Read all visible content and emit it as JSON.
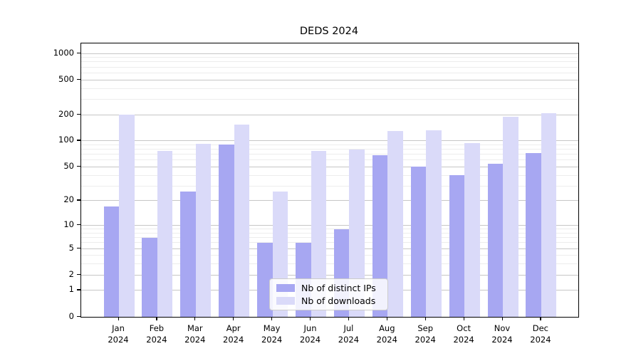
{
  "chart_data": {
    "type": "bar",
    "title": "DEDS 2024",
    "categories": [
      "Jan",
      "Feb",
      "Mar",
      "Apr",
      "May",
      "Jun",
      "Jul",
      "Aug",
      "Sep",
      "Oct",
      "Nov",
      "Dec"
    ],
    "year_label": "2024",
    "series": [
      {
        "name": "Nb of distinct IPs",
        "color": "#a7a7f2",
        "values": [
          17,
          7,
          26,
          90,
          6,
          6,
          9,
          69,
          50,
          40,
          54,
          72
        ]
      },
      {
        "name": "Nb of downloads",
        "color": "#dadaf9",
        "values": [
          200,
          76,
          93,
          155,
          26,
          76,
          80,
          130,
          133,
          94,
          190,
          206
        ]
      }
    ],
    "xlabel": "",
    "ylabel": "",
    "y_scale": "log10(value+1)",
    "y_ticks": [
      1000,
      500,
      200,
      100,
      50,
      20,
      10,
      5,
      2,
      1,
      0
    ],
    "y_minor_ticks": [
      3,
      4,
      6,
      7,
      8,
      9,
      30,
      40,
      60,
      70,
      80,
      90,
      300,
      400,
      600,
      700,
      800,
      900
    ],
    "ylim": [
      0,
      1300
    ],
    "grid": "on",
    "legend_position": "lower-center inside plot"
  }
}
